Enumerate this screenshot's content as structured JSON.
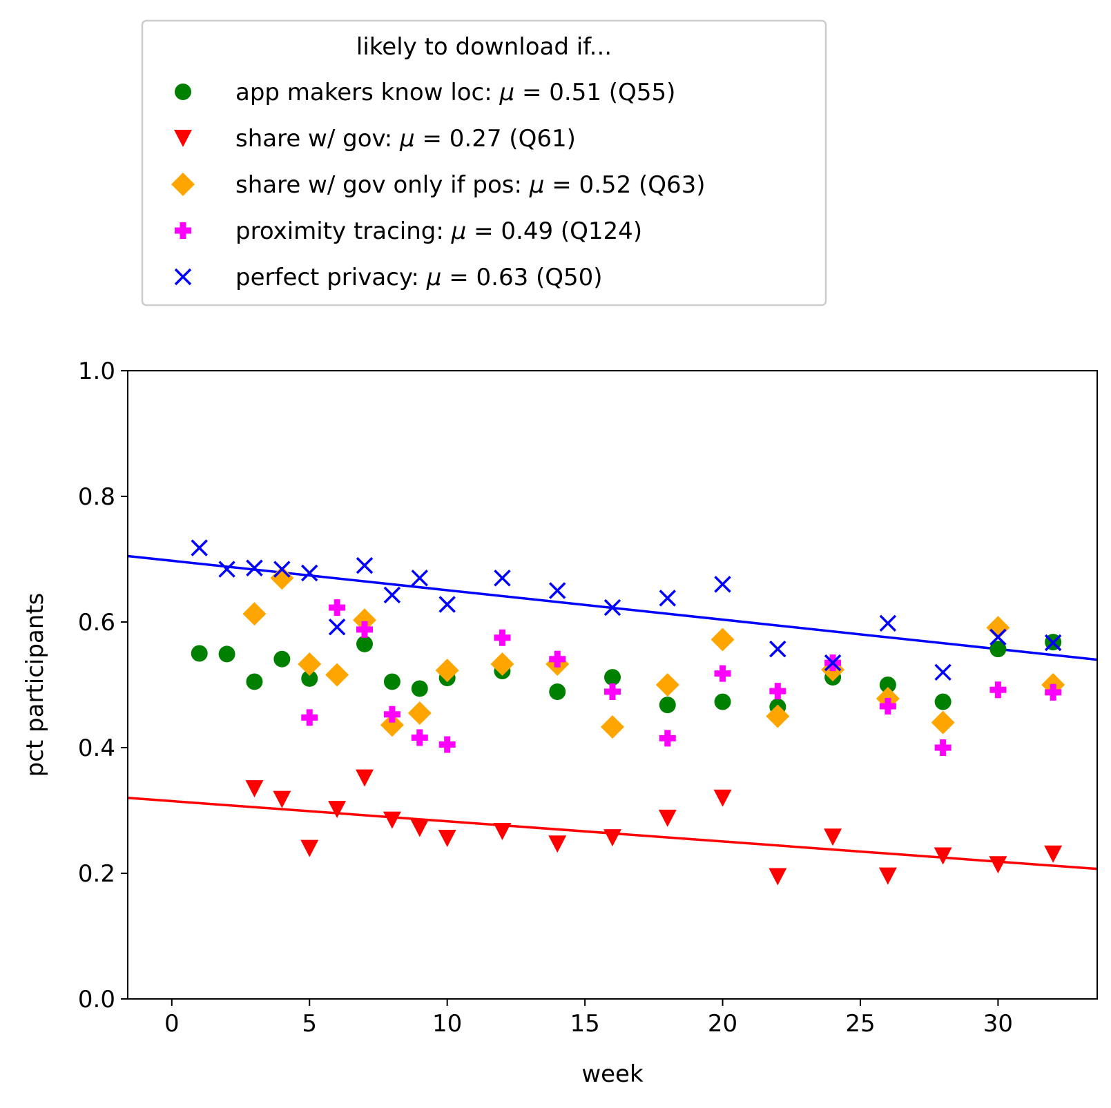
{
  "chart_data": {
    "type": "scatter",
    "xlabel": "week",
    "ylabel": "pct participants",
    "xlim": [
      -1.6,
      33.6
    ],
    "ylim": [
      0.0,
      1.0
    ],
    "x_ticks": [
      0,
      5,
      10,
      15,
      20,
      25,
      30
    ],
    "y_ticks": [
      0.0,
      0.2,
      0.4,
      0.6,
      0.8,
      1.0
    ],
    "x_tick_labels": [
      "0",
      "5",
      "10",
      "15",
      "20",
      "25",
      "30"
    ],
    "y_tick_labels": [
      "0.0",
      "0.2",
      "0.4",
      "0.6",
      "0.8",
      "1.0"
    ],
    "grid": false,
    "legend": {
      "title": "likely to download if...",
      "placement": "above plot, left"
    },
    "series": [
      {
        "name": "app makers know loc: μ = 0.51 (Q55)",
        "name_parts": {
          "label": "app makers know loc: ",
          "mu": "μ",
          "rest": " = 0.51 (Q55)"
        },
        "marker": "circle",
        "color": "#008000",
        "x": [
          1,
          2,
          3,
          4,
          5,
          7,
          8,
          9,
          10,
          12,
          14,
          16,
          18,
          20,
          22,
          24,
          26,
          28,
          30,
          32
        ],
        "y": [
          0.55,
          0.549,
          0.505,
          0.541,
          0.51,
          0.565,
          0.505,
          0.494,
          0.511,
          0.522,
          0.489,
          0.512,
          0.468,
          0.473,
          0.465,
          0.512,
          0.5,
          0.473,
          0.557,
          0.568
        ]
      },
      {
        "name": "share w/ gov: μ = 0.27 (Q61)",
        "name_parts": {
          "label": "share w/ gov: ",
          "mu": "μ",
          "rest": " = 0.27 (Q61)"
        },
        "marker": "triangle-down",
        "color": "#ff0000",
        "x": [
          3,
          4,
          5,
          6,
          7,
          8,
          9,
          10,
          12,
          14,
          16,
          18,
          20,
          22,
          24,
          26,
          28,
          30,
          32
        ],
        "y": [
          0.335,
          0.318,
          0.24,
          0.302,
          0.352,
          0.285,
          0.272,
          0.256,
          0.267,
          0.247,
          0.257,
          0.288,
          0.32,
          0.195,
          0.258,
          0.196,
          0.228,
          0.214,
          0.231
        ],
        "trend": {
          "x": [
            -1.6,
            33.6
          ],
          "y": [
            0.32,
            0.207
          ],
          "color": "#ff0000"
        }
      },
      {
        "name": "share w/ gov only if pos: μ = 0.52 (Q63)",
        "name_parts": {
          "label": "share w/ gov only if pos: ",
          "mu": "μ",
          "rest": " = 0.52 (Q63)"
        },
        "marker": "diamond",
        "color": "#ffa500",
        "x": [
          3,
          4,
          5,
          6,
          7,
          8,
          9,
          10,
          12,
          14,
          16,
          18,
          20,
          22,
          24,
          26,
          28,
          30,
          32
        ],
        "y": [
          0.613,
          0.67,
          0.533,
          0.516,
          0.603,
          0.436,
          0.455,
          0.523,
          0.533,
          0.533,
          0.433,
          0.5,
          0.572,
          0.45,
          0.524,
          0.478,
          0.44,
          0.591,
          0.5
        ]
      },
      {
        "name": "proximity tracing: μ = 0.49 (Q124)",
        "name_parts": {
          "label": "proximity tracing: ",
          "mu": "μ",
          "rest": " = 0.49 (Q124)"
        },
        "marker": "plus",
        "color": "#ff00ff",
        "x": [
          5,
          6,
          7,
          8,
          9,
          10,
          12,
          14,
          16,
          18,
          20,
          22,
          24,
          26,
          28,
          30,
          32
        ],
        "y": [
          0.448,
          0.623,
          0.588,
          0.453,
          0.416,
          0.405,
          0.575,
          0.541,
          0.489,
          0.415,
          0.518,
          0.49,
          0.535,
          0.466,
          0.4,
          0.492,
          0.488
        ]
      },
      {
        "name": "perfect privacy: μ = 0.63 (Q50)",
        "name_parts": {
          "label": "perfect privacy: ",
          "mu": "μ",
          "rest": " = 0.63 (Q50)"
        },
        "marker": "x",
        "color": "#0000ff",
        "x": [
          1,
          2,
          3,
          4,
          5,
          6,
          7,
          8,
          9,
          10,
          12,
          14,
          16,
          18,
          20,
          22,
          24,
          26,
          28,
          30,
          32
        ],
        "y": [
          0.718,
          0.684,
          0.686,
          0.684,
          0.678,
          0.592,
          0.69,
          0.643,
          0.67,
          0.628,
          0.67,
          0.65,
          0.623,
          0.638,
          0.66,
          0.557,
          0.535,
          0.598,
          0.52,
          0.576,
          0.567
        ],
        "trend": {
          "x": [
            -1.6,
            33.6
          ],
          "y": [
            0.705,
            0.54
          ],
          "color": "#0000ff"
        }
      }
    ]
  }
}
